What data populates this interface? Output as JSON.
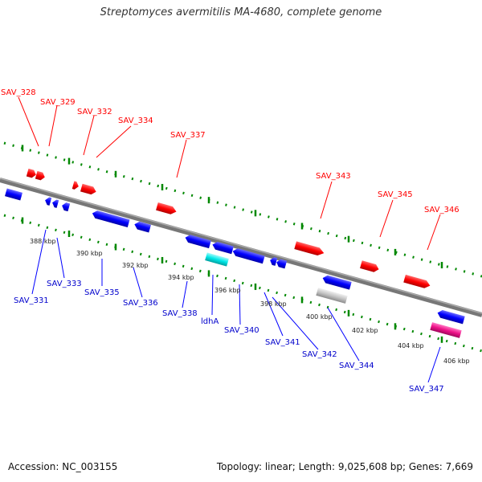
{
  "title": "Streptomyces avermitilis MA-4680, complete genome",
  "accession": "Accession: NC_003155",
  "summary": "Topology: linear; Length: 9,025,608 bp; Genes: 7,669",
  "colors": {
    "forward_gene": "#ff0000",
    "reverse_gene": "#0000ff",
    "rna_gene": "#00e5e5",
    "pseudo_gene": "#bbbbbb",
    "other_gene": "#ee1188",
    "tick": "#007700",
    "axis": "#888888"
  },
  "forward_labels": [
    "SAV_328",
    "SAV_329",
    "SAV_332",
    "SAV_334",
    "SAV_337",
    "SAV_343",
    "SAV_345",
    "SAV_346"
  ],
  "reverse_labels": [
    "SAV_331",
    "SAV_333",
    "SAV_335",
    "SAV_336",
    "SAV_338",
    "ldhA",
    "SAV_340",
    "SAV_341",
    "SAV_342",
    "SAV_344",
    "SAV_347"
  ],
  "scale_labels": [
    "388 kbp",
    "390 kbp",
    "392 kbp",
    "394 kbp",
    "396 kbp",
    "398 kbp",
    "400 kbp",
    "402 kbp",
    "404 kbp",
    "406 kbp"
  ]
}
